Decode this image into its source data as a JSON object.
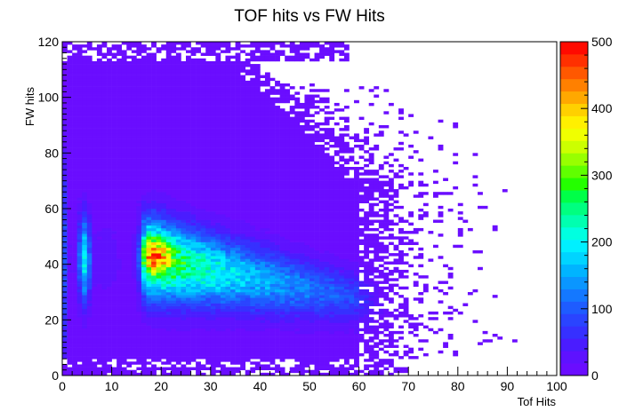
{
  "chart_data": {
    "type": "heatmap",
    "title": "TOF hits vs FW Hits",
    "xlabel": "Tof Hits",
    "ylabel": "FW hits",
    "xlim": [
      0,
      100
    ],
    "ylim": [
      0,
      120
    ],
    "zlim": [
      0,
      500
    ],
    "xbins": 100,
    "ybins": 120,
    "x_ticks": [
      "0",
      "10",
      "20",
      "30",
      "40",
      "50",
      "60",
      "70",
      "80",
      "90",
      "100"
    ],
    "y_ticks": [
      "0",
      "20",
      "40",
      "60",
      "80",
      "100",
      "120"
    ],
    "z_ticks": [
      "0",
      "100",
      "200",
      "300",
      "400",
      "500"
    ],
    "palette": [
      "#6a0dff",
      "#5e12ff",
      "#4a1cff",
      "#3630ff",
      "#2a44ff",
      "#1e5cff",
      "#1478ff",
      "#0a96ff",
      "#00b4ff",
      "#00d4ff",
      "#00f0ff",
      "#00ffe0",
      "#00ffb0",
      "#00ff80",
      "#00ff48",
      "#24ff00",
      "#60ff00",
      "#98ff00",
      "#ccff00",
      "#f0ff00",
      "#fff000",
      "#ffd000",
      "#ffa800",
      "#ff8000",
      "#ff5800",
      "#ff3000",
      "#ff0a00"
    ],
    "regions": [
      {
        "name": "background",
        "x_range": [
          0,
          60
        ],
        "y_range": [
          0,
          120
        ],
        "level": 5
      },
      {
        "name": "column-near-zero",
        "x_center": 0.5,
        "y_range": [
          0,
          105
        ],
        "peak": 90
      },
      {
        "name": "band-x-5",
        "x_center": 4.5,
        "y_center": 42,
        "peak": 190
      },
      {
        "name": "main-band",
        "x_range": [
          15,
          63
        ],
        "peak_at": [
          19,
          43
        ],
        "peak": 500
      }
    ]
  }
}
